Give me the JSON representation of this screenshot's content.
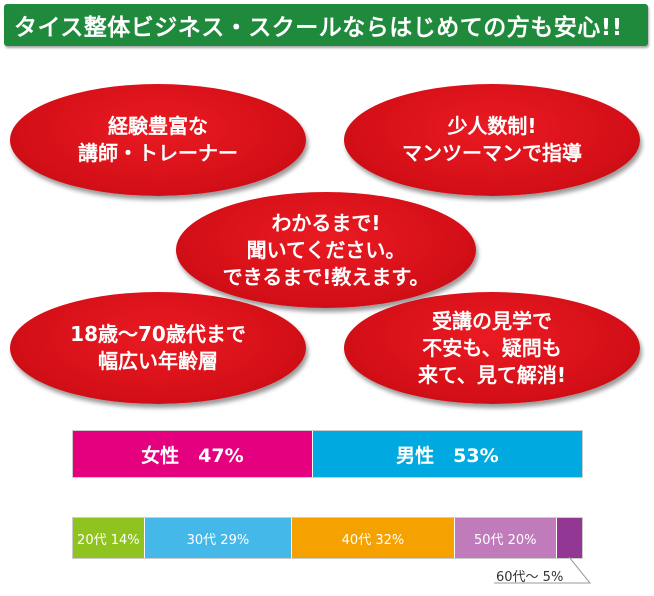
{
  "header": {
    "title": "タイス整体ビジネス・スクールならはじめての方も安心!!"
  },
  "bubbles": [
    {
      "lines": [
        "経験豊富な",
        "講師・トレーナー"
      ]
    },
    {
      "lines": [
        "少人数制!",
        "マンツーマンで指導"
      ]
    },
    {
      "lines": [
        "わかるまで!",
        "聞いてください。",
        "できるまで!教えます。"
      ]
    },
    {
      "lines": [
        "18歳〜70歳代まで",
        "幅広い年齢層"
      ]
    },
    {
      "lines": [
        "受講の見学で",
        "不安も、疑問も",
        "来て、見て解消!"
      ]
    }
  ],
  "gender_bar": {
    "segments": [
      {
        "label": "女性　47%",
        "percent": 47,
        "color": "#e4007f"
      },
      {
        "label": "男性　53%",
        "percent": 53,
        "color": "#00a9e0"
      }
    ]
  },
  "age_bar": {
    "segments": [
      {
        "label": "20代 14%",
        "percent": 14,
        "color": "#8fc31f"
      },
      {
        "label": "30代 29%",
        "percent": 29,
        "color": "#44b8e8"
      },
      {
        "label": "40代 32%",
        "percent": 32,
        "color": "#f5a200"
      },
      {
        "label": "50代 20%",
        "percent": 20,
        "color": "#c07bbb"
      },
      {
        "label": "",
        "percent": 5,
        "color": "#923894"
      }
    ],
    "callout": "60代〜 5%"
  },
  "colors": {
    "header_bg": "#1f8a3c",
    "bubble": "#d40f17"
  }
}
